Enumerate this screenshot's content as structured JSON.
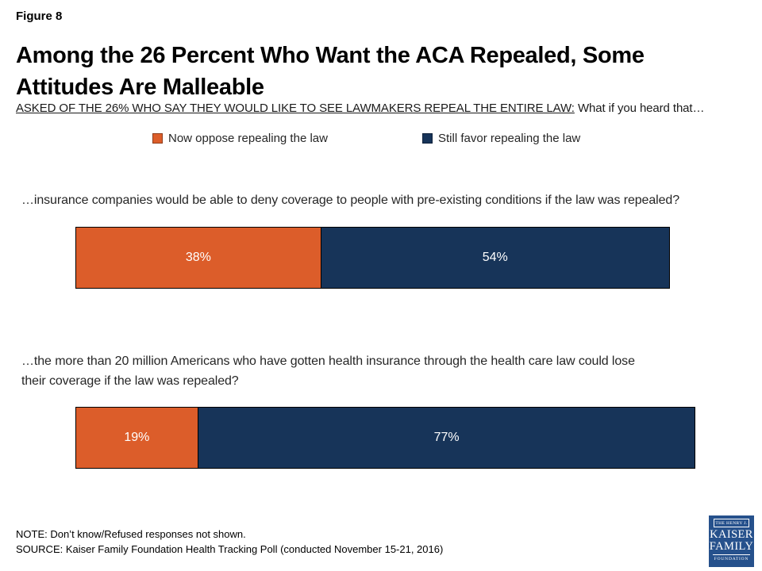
{
  "figure_label": "Figure 8",
  "title": "Among the 26 Percent Who Want the ACA Repealed, Some Attitudes Are Malleable",
  "subtitle": {
    "underlined": "ASKED OF THE 26% WHO SAY THEY WOULD LIKE TO SEE LAWMAKERS REPEAL THE ENTIRE LAW:",
    "rest": " What if you heard that…"
  },
  "legend": {
    "items": [
      {
        "label": "Now oppose repealing the law",
        "color": "#DC5D2A"
      },
      {
        "label": "Still favor repealing the law",
        "color": "#173459"
      }
    ]
  },
  "chart_data": {
    "type": "bar",
    "orientation": "horizontal",
    "stacked": true,
    "title": "Among the 26 Percent Who Want the ACA Repealed, Some Attitudes Are Malleable",
    "xlabel": "",
    "ylabel": "",
    "xlim": [
      0,
      100
    ],
    "grid": false,
    "legend_position": "top",
    "value_label_format": "percent",
    "categories": [
      "…insurance companies would be able to deny coverage to people with pre-existing conditions if the law was repealed?",
      "…the more than 20 million Americans who have gotten health insurance through the health care law could lose their coverage if the law was repealed?"
    ],
    "series": [
      {
        "name": "Now oppose repealing the law",
        "color": "#DC5D2A",
        "values": [
          38,
          19
        ]
      },
      {
        "name": "Still favor repealing the law",
        "color": "#173459",
        "values": [
          54,
          77
        ]
      }
    ]
  },
  "footer": {
    "note": "NOTE: Don’t know/Refused responses not shown.",
    "source": "SOURCE: Kaiser Family Foundation Health Tracking Poll (conducted November 15-21, 2016)"
  },
  "logo": {
    "line1": "THE HENRY J.",
    "line2": "KAISER",
    "line3": "FAMILY",
    "line4": "FOUNDATION"
  }
}
